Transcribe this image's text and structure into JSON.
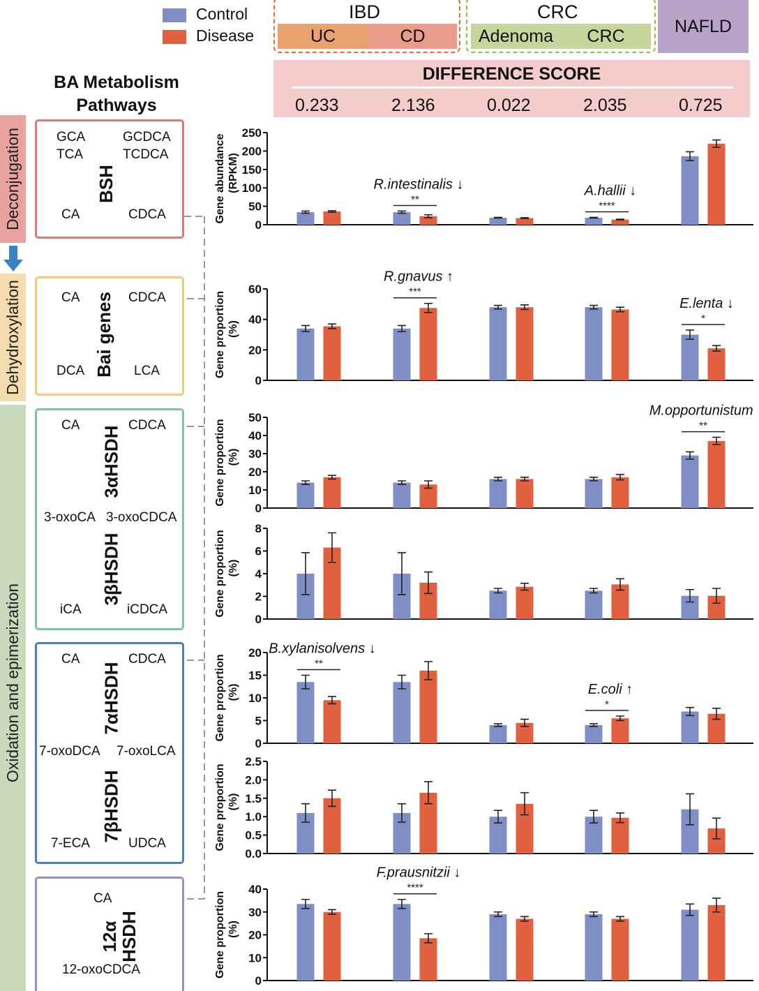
{
  "legend": {
    "items": [
      {
        "label": "Control",
        "color": "#7f8fc6"
      },
      {
        "label": "Disease",
        "color": "#e06040"
      }
    ]
  },
  "header": {
    "ibd": {
      "label": "IBD",
      "color": "#e86a2e",
      "sub": [
        {
          "label": "UC",
          "color": "#e8a26e"
        },
        {
          "label": "CD",
          "color": "#e99b8c"
        }
      ]
    },
    "crc": {
      "label": "CRC",
      "color": "#8fc040",
      "sub": [
        {
          "label": "Adenoma",
          "color": "#c7d49c"
        },
        {
          "label": "CRC",
          "color": "#c7d49c"
        }
      ]
    },
    "nafld": {
      "label": "NAFLD",
      "color": "#b9a3c9"
    },
    "difference": {
      "title": "DIFFERENCE SCORE",
      "color": "#f4cccc",
      "values": [
        "0.233",
        "2.136",
        "0.022",
        "2.035",
        "0.725"
      ]
    }
  },
  "pathways": {
    "title": "BA Metabolism Pathways",
    "stages": [
      {
        "label": "Deconjugation",
        "color": "#e8a3a0"
      },
      {
        "label": "Dehydroxylation",
        "color": "#f5dcae"
      },
      {
        "label": "Oxidation and epimerization",
        "color": "#c8d9bc"
      }
    ],
    "stage_arrow_color": "#3b82c4",
    "bsh": {
      "enzyme": "BSH",
      "color": "#e07870",
      "m": [
        "GCA",
        "TCA",
        "GCDCA",
        "TCDCA",
        "CA",
        "CDCA"
      ]
    },
    "bai": {
      "enzyme": "Bai genes",
      "color": "#f5c97a",
      "m": [
        "CA",
        "CDCA",
        "DCA",
        "LCA"
      ]
    },
    "hsdh3": {
      "enzyme1": "3αHSDH",
      "enzyme2": "3βHSDH",
      "color": "#7fc0ae",
      "m": [
        "CA",
        "CDCA",
        "3-oxoCA",
        "3-oxoCDCA",
        "iCA",
        "iCDCA"
      ]
    },
    "hsdh7": {
      "enzyme1": "7αHSDH",
      "enzyme2": "7βHSDH",
      "color": "#4a80c0",
      "m": [
        "CA",
        "CDCA",
        "7-oxoDCA",
        "7-oxoLCA",
        "7-ECA",
        "UDCA"
      ]
    },
    "hsdh12": {
      "enzyme": "12α HSDH",
      "color": "#9b8fc5",
      "m": [
        "CA",
        "12-oxoCDCA"
      ]
    }
  },
  "chart_data": [
    {
      "type": "bar",
      "ylabel": "Gene abundance (RPKM)",
      "ylim": [
        0,
        250
      ],
      "yticks": [
        "0",
        "50",
        "100",
        "150",
        "200",
        "250"
      ],
      "categories": [
        "UC",
        "CD",
        "Adenoma",
        "CRC",
        "NAFLD"
      ],
      "series": [
        {
          "name": "Control",
          "values": [
            34,
            34,
            19,
            19,
            186
          ],
          "error": [
            3,
            3,
            1,
            1,
            12
          ]
        },
        {
          "name": "Disease",
          "values": [
            36,
            23,
            18,
            14,
            220
          ],
          "error": [
            2,
            4,
            1,
            1,
            10
          ]
        }
      ],
      "annotations": [
        {
          "group": 1,
          "stars": "**",
          "taxon": "R.intestinalis",
          "arrow": "↓"
        },
        {
          "group": 3,
          "stars": "****",
          "taxon": "A.hallii",
          "arrow": "↓"
        }
      ]
    },
    {
      "type": "bar",
      "ylabel": "Gene proportion (%)",
      "ylim": [
        0,
        60
      ],
      "yticks": [
        "0",
        "20",
        "40",
        "60"
      ],
      "categories": [
        "UC",
        "CD",
        "Adenoma",
        "CRC",
        "NAFLD"
      ],
      "series": [
        {
          "name": "Control",
          "values": [
            34,
            34,
            48,
            48,
            30
          ],
          "error": [
            2,
            2,
            1.2,
            1.2,
            3
          ]
        },
        {
          "name": "Disease",
          "values": [
            35.5,
            47.5,
            48,
            46.5,
            21
          ],
          "error": [
            1.5,
            3,
            1.5,
            1.5,
            1.8
          ]
        }
      ],
      "annotations": [
        {
          "group": 1,
          "stars": "***",
          "taxon": "R.gnavus",
          "arrow": "↑"
        },
        {
          "group": 4,
          "stars": "*",
          "taxon": "E.lenta",
          "arrow": "↓"
        }
      ]
    },
    {
      "type": "bar",
      "ylabel": "Gene proportion (%)",
      "ylim": [
        0,
        50
      ],
      "yticks": [
        "0",
        "10",
        "20",
        "30",
        "40",
        "50"
      ],
      "categories": [
        "UC",
        "CD",
        "Adenoma",
        "CRC",
        "NAFLD"
      ],
      "series": [
        {
          "name": "Control",
          "values": [
            14,
            14,
            16,
            16,
            29
          ],
          "error": [
            1,
            1,
            1,
            1,
            2
          ]
        },
        {
          "name": "Disease",
          "values": [
            17,
            13,
            16,
            17,
            37
          ],
          "error": [
            1,
            2,
            1,
            1.5,
            2
          ]
        }
      ],
      "annotations": [
        {
          "group": 4,
          "stars": "**",
          "taxon": "M.opportunistum",
          "arrow": "↑"
        }
      ]
    },
    {
      "type": "bar",
      "ylabel": "Gene proportion (%)",
      "ylim": [
        0,
        8
      ],
      "yticks": [
        "0",
        "2",
        "4",
        "6",
        "8"
      ],
      "categories": [
        "UC",
        "CD",
        "Adenoma",
        "CRC",
        "NAFLD"
      ],
      "series": [
        {
          "name": "Control",
          "values": [
            4,
            4,
            2.5,
            2.5,
            2.05
          ],
          "error": [
            1.85,
            1.85,
            0.2,
            0.2,
            0.55
          ]
        },
        {
          "name": "Disease",
          "values": [
            6.3,
            3.2,
            2.85,
            3.05,
            2.05
          ],
          "error": [
            1.3,
            0.95,
            0.3,
            0.5,
            0.65
          ]
        }
      ],
      "annotations": []
    },
    {
      "type": "bar",
      "ylabel": "Gene proportion (%)",
      "ylim": [
        0,
        20
      ],
      "yticks": [
        "0",
        "5",
        "10",
        "15",
        "20"
      ],
      "categories": [
        "UC",
        "CD",
        "Adenoma",
        "CRC",
        "NAFLD"
      ],
      "series": [
        {
          "name": "Control",
          "values": [
            13.5,
            13.5,
            4,
            4,
            7
          ],
          "error": [
            1.5,
            1.5,
            0.3,
            0.3,
            0.9
          ]
        },
        {
          "name": "Disease",
          "values": [
            9.5,
            16,
            4.5,
            5.5,
            6.5
          ],
          "error": [
            0.8,
            2,
            0.8,
            0.5,
            1.2
          ]
        }
      ],
      "annotations": [
        {
          "group": 0,
          "stars": "**",
          "taxon": "B.xylanisolvens",
          "arrow": "↓"
        },
        {
          "group": 3,
          "stars": "*",
          "taxon": "E.coli",
          "arrow": "↑"
        }
      ]
    },
    {
      "type": "bar",
      "ylabel": "Gene proportion (%)",
      "ylim": [
        0,
        2.5
      ],
      "yticks": [
        "0.0",
        "0.5",
        "1.0",
        "1.5",
        "2.0",
        "2.5"
      ],
      "categories": [
        "UC",
        "CD",
        "Adenoma",
        "CRC",
        "NAFLD"
      ],
      "series": [
        {
          "name": "Control",
          "values": [
            1.1,
            1.1,
            1.0,
            1.0,
            1.2
          ],
          "error": [
            0.25,
            0.25,
            0.17,
            0.17,
            0.42
          ]
        },
        {
          "name": "Disease",
          "values": [
            1.5,
            1.65,
            1.35,
            0.97,
            0.68
          ],
          "error": [
            0.22,
            0.3,
            0.3,
            0.13,
            0.28
          ]
        }
      ],
      "annotations": []
    },
    {
      "type": "bar",
      "ylabel": "Gene proportion (%)",
      "ylim": [
        0,
        40
      ],
      "yticks": [
        "0",
        "10",
        "20",
        "30",
        "40"
      ],
      "categories": [
        "UC",
        "CD",
        "Adenoma",
        "CRC",
        "NAFLD"
      ],
      "series": [
        {
          "name": "Control",
          "values": [
            33.5,
            33.5,
            29,
            29,
            31
          ],
          "error": [
            2,
            2,
            1,
            1,
            2.5
          ]
        },
        {
          "name": "Disease",
          "values": [
            30,
            18.5,
            27,
            27,
            33
          ],
          "error": [
            1,
            2,
            1,
            1,
            3
          ]
        }
      ],
      "annotations": [
        {
          "group": 1,
          "stars": "****",
          "taxon": "F.prausnitzii",
          "arrow": "↓"
        }
      ]
    }
  ]
}
